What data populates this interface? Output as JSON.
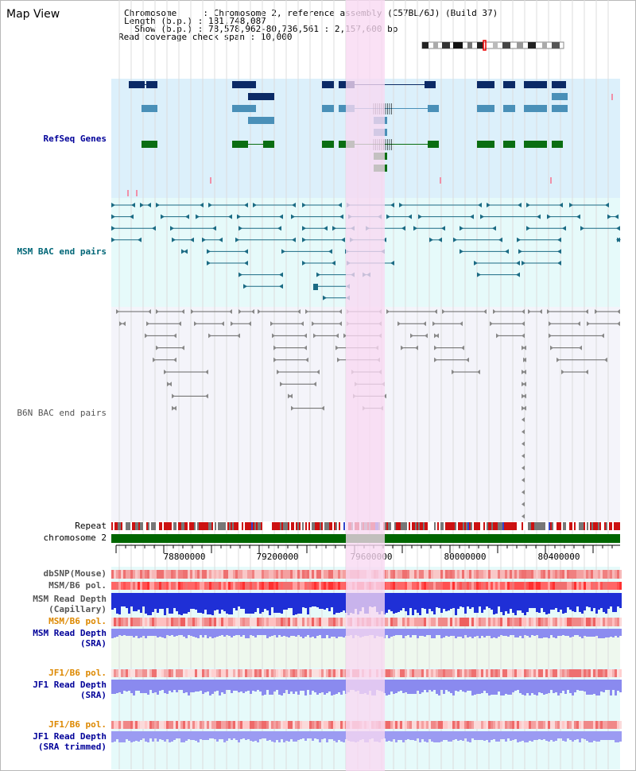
{
  "app": {
    "title": "Map View"
  },
  "info": {
    "chromosome_line": "Chromosome     : Chromosome 2, reference assembly (C57BL/6J) (Build 37)",
    "length_line": "Length (b.p.) : 181,748,087",
    "show_line": "  Show (b.p.) : 78,578,962-80,736,561 : 2,157,600 bp",
    "coverage_line": "Read coverage check span : 10,000"
  },
  "tracks": {
    "refseq": "RefSeq Genes",
    "msm_bac": "MSM BAC end pairs",
    "b6n_bac": "B6N BAC end pairs",
    "repeat": "Repeat",
    "chromosome": "chromosome 2",
    "dbsnp": "dbSNP(Mouse)",
    "msm_b6_pol": "MSM/B6 pol.",
    "msm_depth_cap_1": "MSM Read Depth",
    "msm_depth_cap_2": "(Capillary)",
    "msm_b6_pol_2": "MSM/B6 pol.",
    "msm_depth_sra_1": "MSM Read Depth",
    "msm_depth_sra_2": "(SRA)",
    "jf1_b6_pol": "JF1/B6 pol.",
    "jf1_depth_sra_1": "JF1 Read Depth",
    "jf1_depth_sra_2": "(SRA)",
    "jf1_b6_pol_2": "JF1/B6 pol.",
    "jf1_depth_trim_1": "JF1 Read Depth",
    "jf1_depth_trim_2": "(SRA trimmed)"
  },
  "axis": {
    "ticks": [
      "78800000",
      "79200000",
      "79600000",
      "80000000",
      "80400000"
    ]
  },
  "colors": {
    "refseq_bg": "#dcf0fb",
    "msm_bg": "#e6fafa",
    "b6n_bg": "#f4f4fa",
    "highlight": "#f9d8f2",
    "chromosome": "#006600",
    "label_blue": "#000099",
    "label_msm": "#006677",
    "label_orange": "#dd8800"
  }
}
